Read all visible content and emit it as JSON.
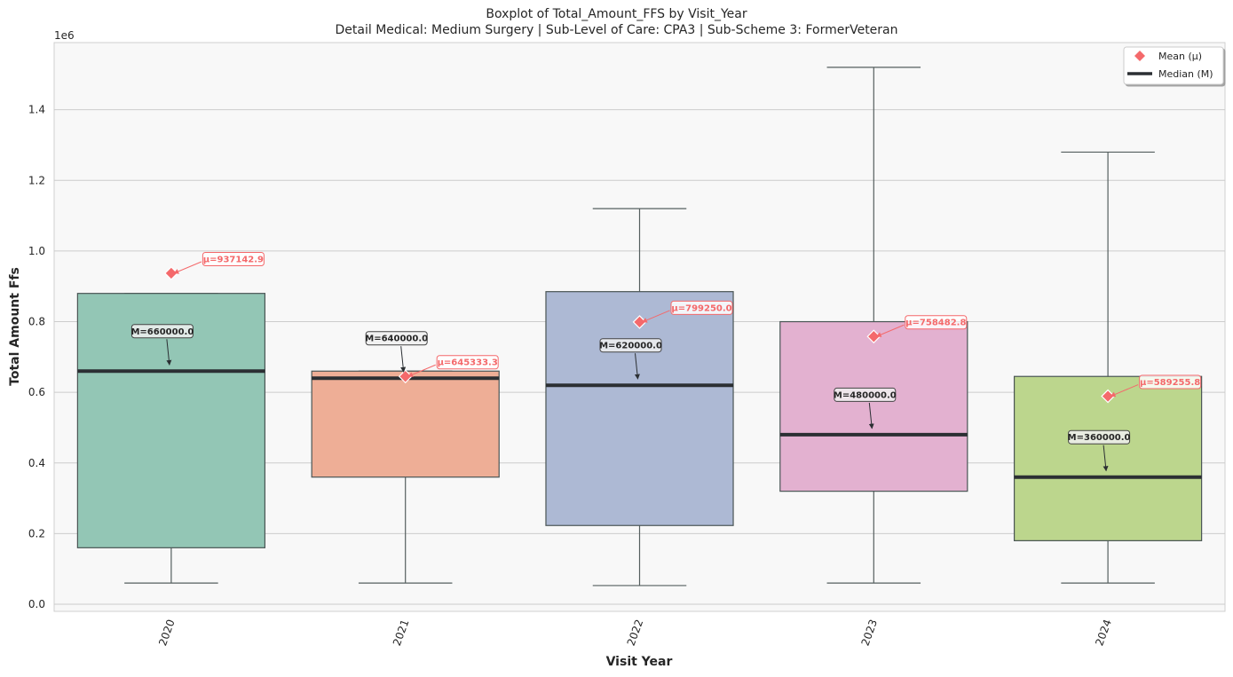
{
  "chart_data": {
    "type": "box",
    "title": "Boxplot of Total_Amount_FFS by Visit_Year",
    "subtitle": "Detail Medical: Medium Surgery | Sub-Level of Care: CPA3 | Sub-Scheme 3: FormerVeteran",
    "xlabel": "Visit Year",
    "ylabel": "Total Amount Ffs",
    "y_offset_label": "1e6",
    "ylim": [
      -0.02,
      1.59
    ],
    "yticks": [
      0.0,
      0.2,
      0.4,
      0.6,
      0.8,
      1.0,
      1.2,
      1.4
    ],
    "ytick_labels": [
      "0.0",
      "0.2",
      "0.4",
      "0.6",
      "0.8",
      "1.0",
      "1.2",
      "1.4"
    ],
    "grid": true,
    "legend_position": "top-right",
    "legend": [
      {
        "label": "Mean (μ)",
        "marker": "diamond",
        "color": "#f4696b"
      },
      {
        "label": "Median (M)",
        "marker": "line",
        "color": "#2b2f33"
      }
    ],
    "categories": [
      "2020",
      "2021",
      "2022",
      "2023",
      "2024"
    ],
    "boxes": [
      {
        "category": "2020",
        "whisker_low": 0.06,
        "q1": 0.16,
        "median": 0.66,
        "q3": 0.88,
        "whisker_high": 0.88,
        "mean": 0.937,
        "color": "#93c6b5",
        "median_label": "M=660000.0",
        "mean_label": "μ=937142.9"
      },
      {
        "category": "2021",
        "whisker_low": 0.06,
        "q1": 0.36,
        "median": 0.64,
        "q3": 0.66,
        "whisker_high": 0.66,
        "mean": 0.645,
        "color": "#eeae96",
        "median_label": "M=640000.0",
        "mean_label": "μ=645333.3"
      },
      {
        "category": "2022",
        "whisker_low": 0.053,
        "q1": 0.223,
        "median": 0.62,
        "q3": 0.885,
        "whisker_high": 1.12,
        "mean": 0.799,
        "color": "#adb9d4",
        "median_label": "M=620000.0",
        "mean_label": "μ=799250.0"
      },
      {
        "category": "2023",
        "whisker_low": 0.06,
        "q1": 0.32,
        "median": 0.48,
        "q3": 0.8,
        "whisker_high": 1.52,
        "mean": 0.758,
        "color": "#e3b1d0",
        "median_label": "M=480000.0",
        "mean_label": "μ=758482.8"
      },
      {
        "category": "2024",
        "whisker_low": 0.06,
        "q1": 0.18,
        "median": 0.36,
        "q3": 0.645,
        "whisker_high": 1.28,
        "mean": 0.589,
        "color": "#bcd68d",
        "median_label": "M=360000.0",
        "mean_label": "μ=589255.8"
      }
    ]
  }
}
